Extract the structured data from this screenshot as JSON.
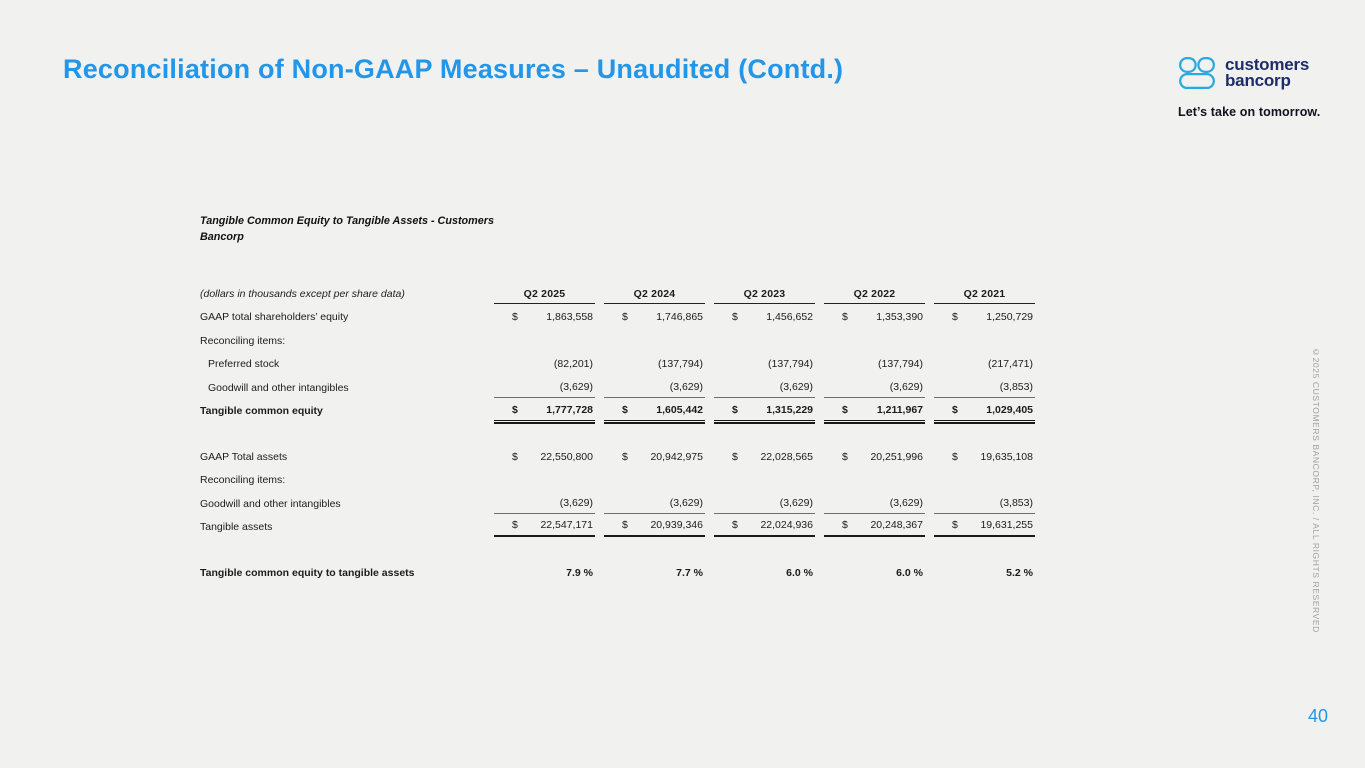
{
  "slide": {
    "title": "Reconciliation of Non-GAAP Measures – Unaudited (Contd.)",
    "page_number": "40",
    "copyright_vertical": "©2025 CUSTOMERS BANCORP, INC. / ALL RIGHTS RESERVED"
  },
  "brand": {
    "wordmark_line1": "customers",
    "wordmark_line2": "bancorp",
    "tagline": "Let’s take on tomorrow.",
    "accent_blue": "#2496e8",
    "logo_blue": "#29a9e1",
    "navy": "#1e2d69"
  },
  "table": {
    "title": "Tangible Common Equity to Tangible Assets - Customers Bancorp",
    "units_note": "(dollars in thousands except per share data)",
    "columns": [
      "Q2 2025",
      "Q2 2024",
      "Q2 2023",
      "Q2 2022",
      "Q2 2021"
    ],
    "rows": [
      {
        "label": "GAAP total shareholders’ equity",
        "dollar": true,
        "values": [
          "1,863,558",
          "1,746,865",
          "1,456,652",
          "1,353,390",
          "1,250,729"
        ]
      },
      {
        "label": "Reconciling items:"
      },
      {
        "label": "Preferred stock",
        "indent": true,
        "values": [
          "(82,201)",
          "(137,794)",
          "(137,794)",
          "(137,794)",
          "(217,471)"
        ]
      },
      {
        "label": "Goodwill and other intangibles",
        "indent": true,
        "underline": "single",
        "values": [
          "(3,629)",
          "(3,629)",
          "(3,629)",
          "(3,629)",
          "(3,853)"
        ]
      },
      {
        "label": "Tangible common equity",
        "bold": true,
        "dollar": true,
        "underline": "double",
        "values": [
          "1,777,728",
          "1,605,442",
          "1,315,229",
          "1,211,967",
          "1,029,405"
        ]
      },
      {
        "spacer": true
      },
      {
        "label": "GAAP Total assets",
        "dollar": true,
        "values": [
          "22,550,800",
          "20,942,975",
          "22,028,565",
          "20,251,996",
          "19,635,108"
        ]
      },
      {
        "label": "Reconciling items:"
      },
      {
        "label": "Goodwill and other intangibles",
        "underline": "single",
        "values": [
          "(3,629)",
          "(3,629)",
          "(3,629)",
          "(3,629)",
          "(3,853)"
        ]
      },
      {
        "label": "Tangible assets",
        "dollar": true,
        "underline": "thick",
        "values": [
          "22,547,171",
          "20,939,346",
          "22,024,936",
          "20,248,367",
          "19,631,255"
        ]
      },
      {
        "spacer": true
      },
      {
        "label": "Tangible common equity to tangible assets",
        "bold": true,
        "values": [
          "7.9 %",
          "7.7 %",
          "6.0 %",
          "6.0 %",
          "5.2 %"
        ]
      }
    ]
  }
}
